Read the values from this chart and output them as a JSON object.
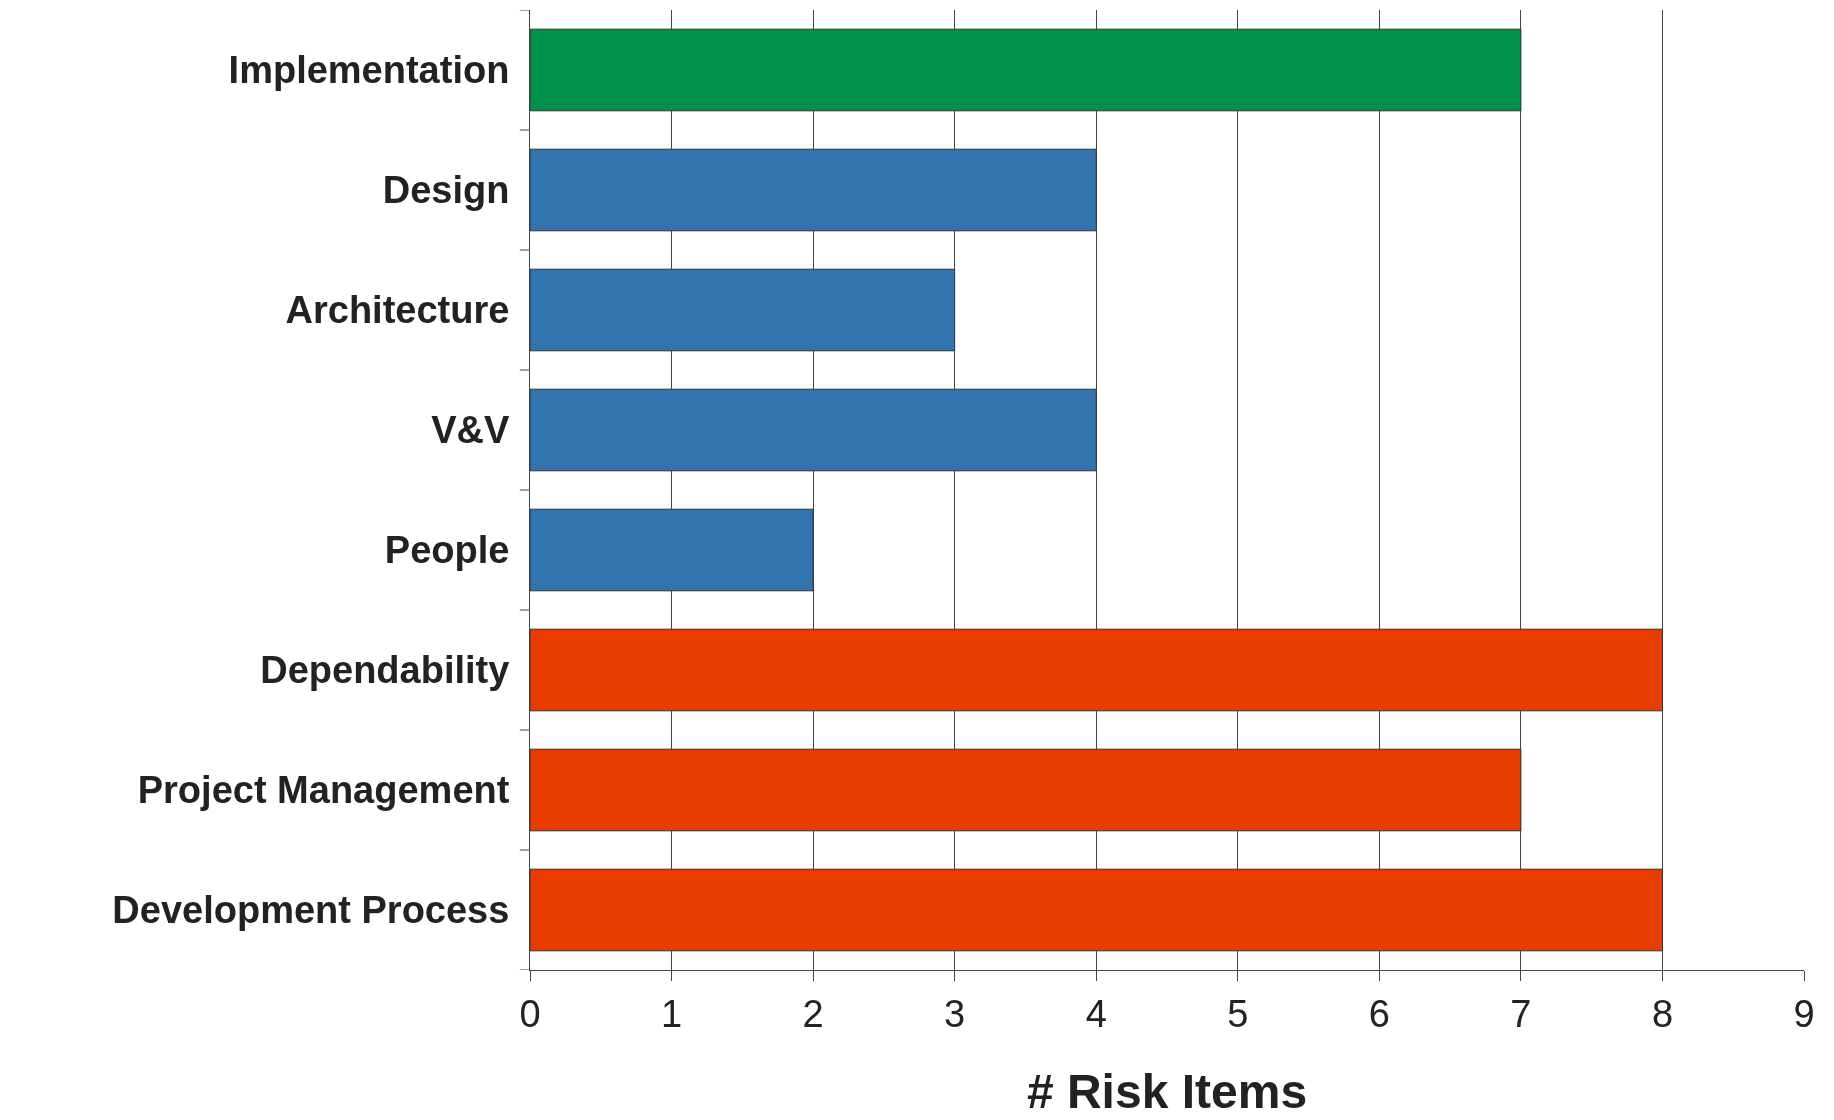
{
  "chart_data": {
    "type": "bar",
    "orientation": "horizontal",
    "xlabel": "# Risk Items",
    "categories": [
      "Implementation",
      "Design",
      "Architecture",
      "V&V",
      "People",
      "Dependability",
      "Project Management",
      "Development Process"
    ],
    "values": [
      7,
      4,
      3,
      4,
      2,
      8,
      7,
      8
    ],
    "colors": [
      "#00924a",
      "#3174b0",
      "#3174b0",
      "#3174b0",
      "#3174b0",
      "#e83c00",
      "#e83c00",
      "#e83c00"
    ],
    "xlim": [
      0,
      9
    ],
    "xticks": [
      0,
      1,
      2,
      3,
      4,
      5,
      6,
      7,
      8,
      9
    ],
    "grid": "x"
  }
}
